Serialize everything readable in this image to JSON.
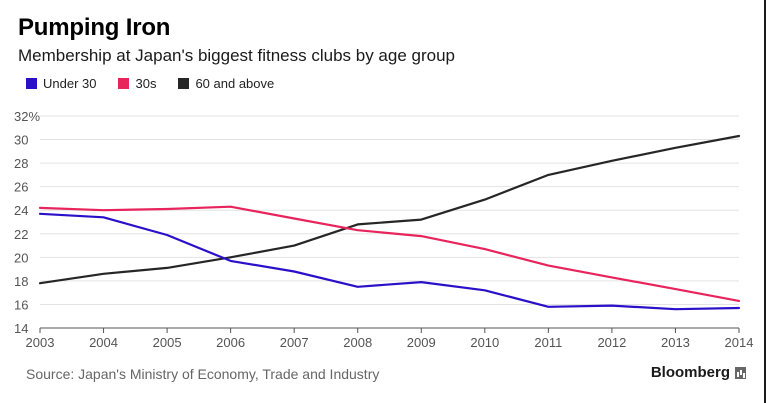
{
  "header": {
    "title": "Pumping Iron",
    "subtitle": "Membership at Japan's biggest fitness clubs by age group"
  },
  "footer": {
    "source": "Source: Japan's Ministry of Economy, Trade and Industry",
    "brand": "Bloomberg"
  },
  "chart_data": {
    "type": "line",
    "title": "Pumping Iron",
    "subtitle": "Membership at Japan's biggest fitness clubs by age group",
    "xlabel": "",
    "ylabel": "",
    "x": [
      "2003",
      "2004",
      "2005",
      "2006",
      "2007",
      "2008",
      "2009",
      "2010",
      "2011",
      "2012",
      "2013",
      "2014"
    ],
    "ylim": [
      14,
      32
    ],
    "yticks": [
      14,
      16,
      18,
      20,
      22,
      24,
      26,
      28,
      30,
      32
    ],
    "ytick_labels": [
      "14",
      "16",
      "18",
      "20",
      "22",
      "24",
      "26",
      "28",
      "30",
      "32%"
    ],
    "grid": true,
    "legend_position": "top-left",
    "series": [
      {
        "name": "Under 30",
        "color": "#2a11c9",
        "values": [
          23.7,
          23.4,
          21.9,
          19.7,
          18.8,
          17.5,
          17.9,
          17.2,
          15.8,
          15.9,
          15.6,
          15.7
        ]
      },
      {
        "name": "30s",
        "color": "#e8245c",
        "values": [
          24.2,
          24.0,
          24.1,
          24.3,
          23.3,
          22.3,
          21.8,
          20.7,
          19.3,
          18.3,
          17.3,
          16.3
        ]
      },
      {
        "name": "60 and above",
        "color": "#262626",
        "values": [
          17.8,
          18.6,
          19.1,
          20.0,
          21.0,
          22.8,
          23.2,
          24.9,
          27.0,
          28.2,
          29.3,
          30.3
        ]
      }
    ]
  }
}
